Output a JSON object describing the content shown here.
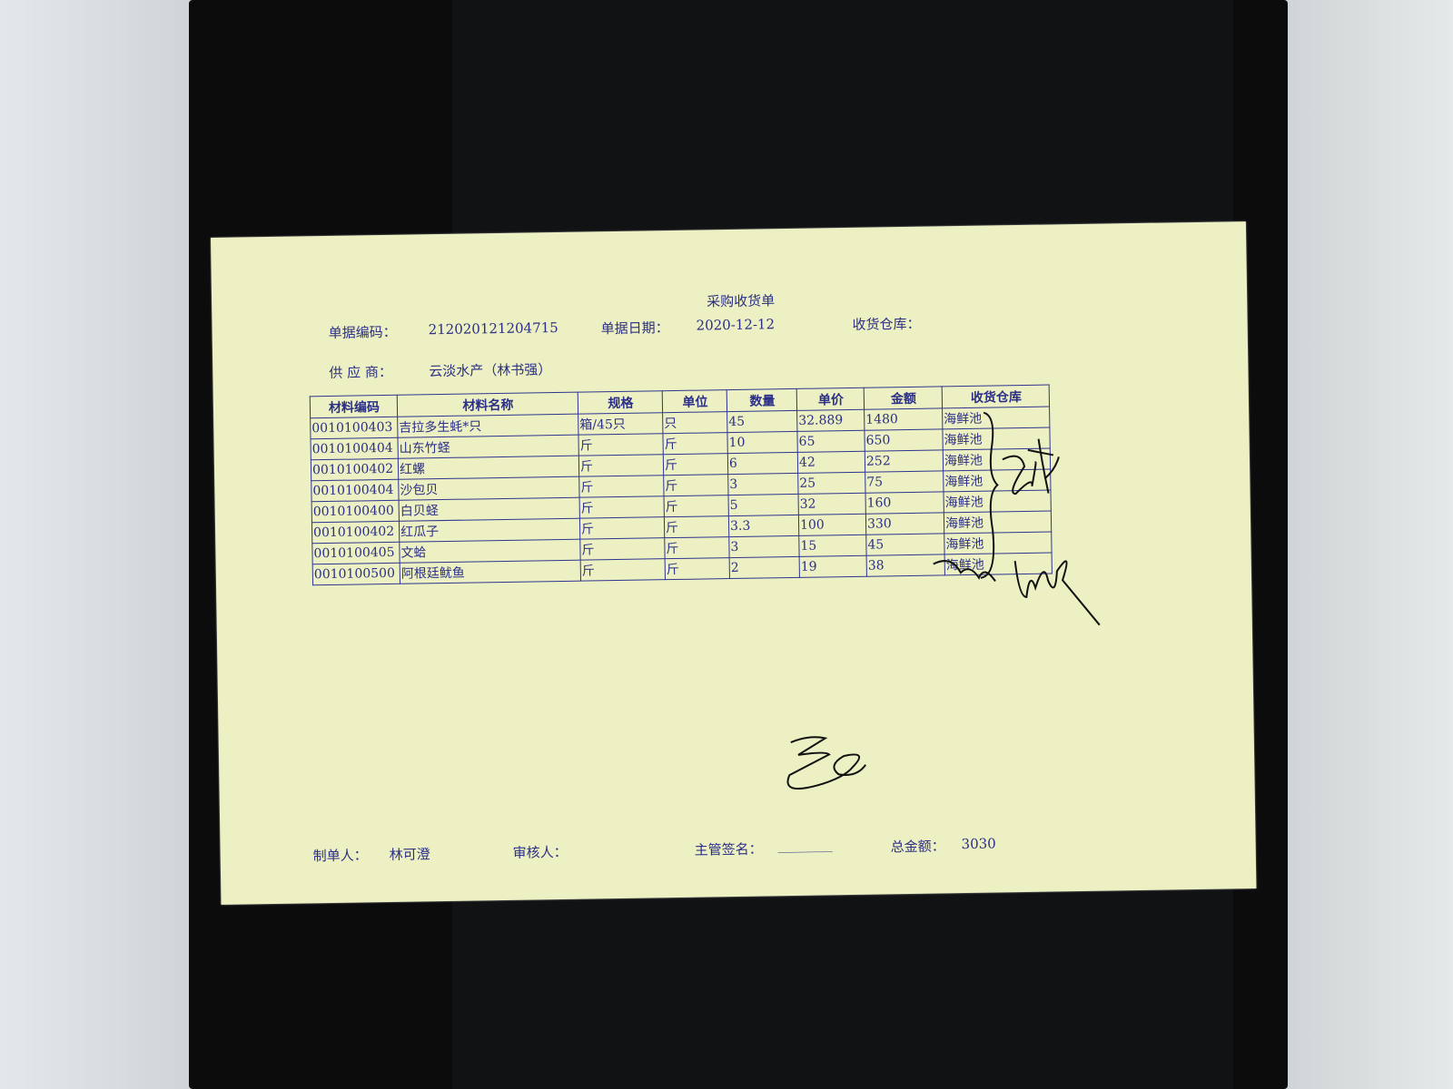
{
  "document": {
    "title": "采购收货单",
    "doc_no_label": "单据编码：",
    "doc_no": "212020121204715",
    "date_label": "单据日期：",
    "date": "2020-12-12",
    "warehouse_label": "收货仓库：",
    "supplier_label": "供 应 商：",
    "supplier": "云淡水产（林书强）",
    "columns": [
      "材料编码",
      "材料名称",
      "规格",
      "单位",
      "数量",
      "单价",
      "金额",
      "收货仓库"
    ],
    "rows": [
      [
        "0010100403",
        "吉拉多生蚝*只",
        "箱/45只",
        "只",
        "45",
        "32.889",
        "1480",
        "海鲜池"
      ],
      [
        "0010100404",
        "山东竹蛏",
        "斤",
        "斤",
        "10",
        "65",
        "650",
        "海鲜池"
      ],
      [
        "0010100402",
        "红螺",
        "斤",
        "斤",
        "6",
        "42",
        "252",
        "海鲜池"
      ],
      [
        "0010100404",
        "沙包贝",
        "斤",
        "斤",
        "3",
        "25",
        "75",
        "海鲜池"
      ],
      [
        "0010100400",
        "白贝蛏",
        "斤",
        "斤",
        "5",
        "32",
        "160",
        "海鲜池"
      ],
      [
        "0010100402",
        "红瓜子",
        "斤",
        "斤",
        "3.3",
        "100",
        "330",
        "海鲜池"
      ],
      [
        "0010100405",
        "文蛤",
        "斤",
        "斤",
        "3",
        "15",
        "45",
        "海鲜池"
      ],
      [
        "0010100500",
        "阿根廷鱿鱼",
        "斤",
        "斤",
        "2",
        "19",
        "38",
        "海鲜池"
      ]
    ],
    "maker_label": "制单人：",
    "maker": "林可澄",
    "reviewer_label": "审核人：",
    "supervisor_label": "主管签名：",
    "supervisor_blank": "________",
    "total_label": "总金额：",
    "total": "3030"
  },
  "colors": {
    "paper": "#ecf0c2",
    "ink": "#2b2f86",
    "tray": "#0c0c0d"
  }
}
